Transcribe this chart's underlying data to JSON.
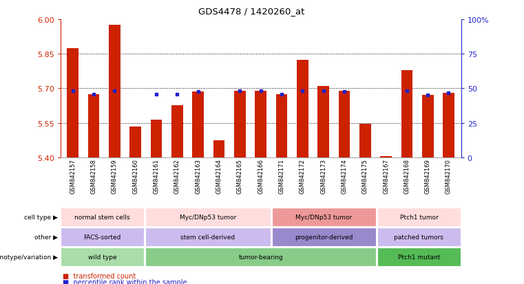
{
  "title": "GDS4478 / 1420260_at",
  "samples": [
    "GSM842157",
    "GSM842158",
    "GSM842159",
    "GSM842160",
    "GSM842161",
    "GSM842162",
    "GSM842163",
    "GSM842164",
    "GSM842165",
    "GSM842166",
    "GSM842171",
    "GSM842172",
    "GSM842173",
    "GSM842174",
    "GSM842175",
    "GSM842167",
    "GSM842168",
    "GSM842169",
    "GSM842170"
  ],
  "bar_values": [
    5.875,
    5.675,
    5.975,
    5.535,
    5.565,
    5.625,
    5.685,
    5.475,
    5.69,
    5.69,
    5.675,
    5.825,
    5.71,
    5.69,
    5.545,
    5.405,
    5.78,
    5.67,
    5.68
  ],
  "dot_values": [
    5.69,
    5.675,
    5.69,
    null,
    5.675,
    5.675,
    5.685,
    null,
    5.69,
    5.69,
    5.675,
    5.69,
    5.69,
    5.685,
    null,
    null,
    5.69,
    5.67,
    5.68
  ],
  "ylim": [
    5.4,
    6.0
  ],
  "yticks_left": [
    5.4,
    5.55,
    5.7,
    5.85,
    6.0
  ],
  "yticks_right": [
    0,
    25,
    50,
    75,
    100
  ],
  "bar_color": "#cc2200",
  "dot_color": "#2222cc",
  "groups": [
    {
      "label": "wild type",
      "start": 0,
      "end": 4,
      "color": "#aaddaa"
    },
    {
      "label": "tumor-bearing",
      "start": 4,
      "end": 15,
      "color": "#88cc88"
    },
    {
      "label": "Ptch1 mutant",
      "start": 15,
      "end": 19,
      "color": "#55bb55"
    }
  ],
  "other_groups": [
    {
      "label": "FACS-sorted",
      "start": 0,
      "end": 4,
      "color": "#ccbbee"
    },
    {
      "label": "stem cell-derived",
      "start": 4,
      "end": 10,
      "color": "#ccbbee"
    },
    {
      "label": "progenitor-derived",
      "start": 10,
      "end": 15,
      "color": "#9988cc"
    },
    {
      "label": "patched tumors",
      "start": 15,
      "end": 19,
      "color": "#ccbbee"
    }
  ],
  "cell_groups": [
    {
      "label": "normal stem cells",
      "start": 0,
      "end": 4,
      "color": "#ffdddd"
    },
    {
      "label": "Myc/DNp53 tumor",
      "start": 4,
      "end": 10,
      "color": "#ffdddd"
    },
    {
      "label": "Myc/DNp53 tumor",
      "start": 10,
      "end": 15,
      "color": "#ee9999"
    },
    {
      "label": "Ptch1 tumor",
      "start": 15,
      "end": 19,
      "color": "#ffdddd"
    }
  ],
  "row_labels": [
    "genotype/variation",
    "other",
    "cell type"
  ],
  "legend_bar": "transformed count",
  "legend_dot": "percentile rank within the sample"
}
